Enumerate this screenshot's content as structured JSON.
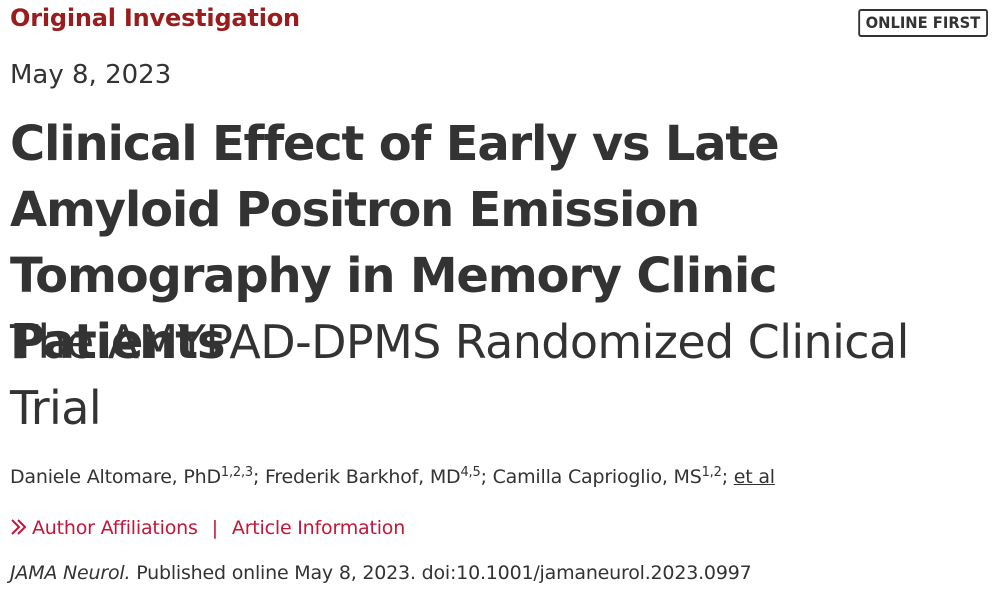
{
  "header": {
    "section_label": "Original Investigation",
    "badge": "ONLINE FIRST"
  },
  "article": {
    "date": "May 8, 2023",
    "title": "Clinical Effect of Early vs Late Amyloid Positron Emission Tomography in Memory Clinic Patients",
    "subtitle": "The AMYPAD-DPMS Randomized Clinical Trial"
  },
  "authors": [
    {
      "name": "Daniele Altomare, PhD",
      "affiliations": "1,2,3"
    },
    {
      "name": "Frederik Barkhof, MD",
      "affiliations": "4,5"
    },
    {
      "name": "Camilla Caprioglio, MS",
      "affiliations": "1,2"
    }
  ],
  "authors_more": "et al",
  "links": {
    "affiliations": "Author Affiliations",
    "separator": "|",
    "article_info": "Article Information",
    "chevron_icon": "double-chevron-right-icon"
  },
  "citation": {
    "journal": "JAMA Neurol.",
    "text": "Published online May 8, 2023. doi:10.1001/jamaneurol.2023.0997"
  },
  "colors": {
    "section_label": "#9b1c1c",
    "link": "#c4153a",
    "text": "#333333"
  }
}
